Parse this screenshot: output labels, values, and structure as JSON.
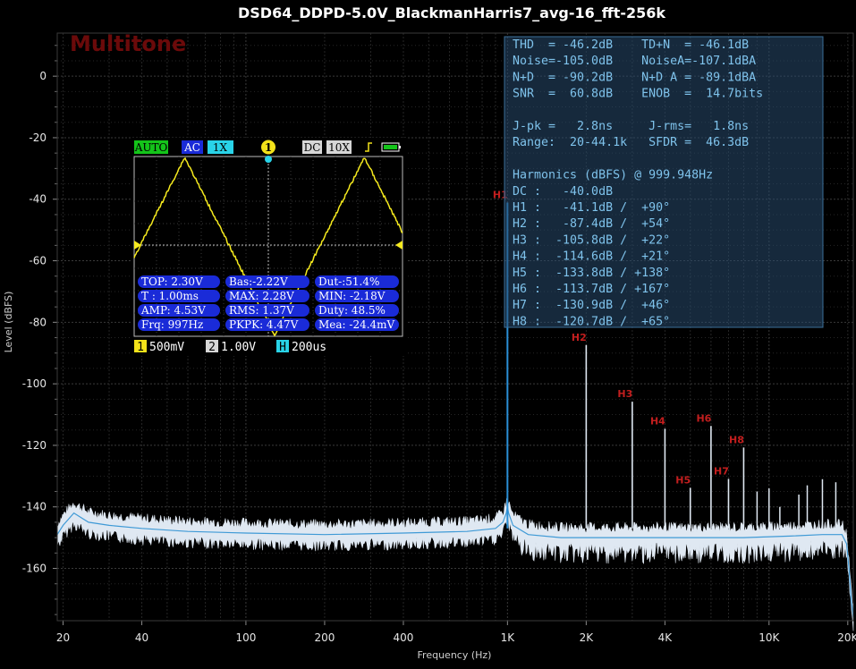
{
  "chart_data": {
    "type": "line",
    "title": "DSD64_DDPD-5.0V_BlackmanHarris7_avg-16_fft-256k",
    "brand": "Multitone",
    "xlabel": "Frequency (Hz)",
    "ylabel": "Level (dBFS)",
    "x_scale": "log",
    "xlim": [
      19,
      21000
    ],
    "ylim": [
      -177,
      14
    ],
    "x_ticks": [
      {
        "value": 20,
        "label": "20"
      },
      {
        "value": 40,
        "label": "40"
      },
      {
        "value": 100,
        "label": "100"
      },
      {
        "value": 200,
        "label": "200"
      },
      {
        "value": 400,
        "label": "400"
      },
      {
        "value": 1000,
        "label": "1K"
      },
      {
        "value": 2000,
        "label": "2K"
      },
      {
        "value": 4000,
        "label": "4K"
      },
      {
        "value": 10000,
        "label": "10K"
      },
      {
        "value": 20000,
        "label": "20K"
      }
    ],
    "y_ticks": [
      0,
      -20,
      -40,
      -60,
      -80,
      -100,
      -120,
      -140,
      -160
    ],
    "grid": true,
    "series": [
      {
        "color": "#dfe8f2",
        "x": [
          19,
          20,
          22,
          25,
          30,
          40,
          60,
          100,
          200,
          400,
          700,
          900,
          960,
          990,
          1000,
          1010,
          1050,
          1200,
          1600,
          2000,
          3000,
          5000,
          8000,
          12000,
          16000,
          19000,
          19800,
          20200,
          20600,
          21000
        ],
        "y": [
          -149,
          -146,
          -142,
          -145,
          -146,
          -147,
          -148,
          -148.5,
          -149,
          -148.5,
          -148,
          -147,
          -145,
          -142,
          -140,
          -142,
          -146,
          -149,
          -150,
          -150,
          -150,
          -150,
          -150,
          -149.5,
          -149,
          -149,
          -152,
          -160,
          -170,
          -176
        ]
      }
    ],
    "harmonic_spikes": [
      {
        "label": "H1",
        "x": 999.948,
        "y": -41.1,
        "color": "#2a8fd6"
      },
      {
        "label": "H2",
        "x": 2000,
        "y": -87.4
      },
      {
        "label": "H3",
        "x": 3000,
        "y": -105.8
      },
      {
        "label": "H4",
        "x": 4000,
        "y": -114.6
      },
      {
        "label": "H5",
        "x": 5000,
        "y": -133.8
      },
      {
        "label": "H6",
        "x": 6000,
        "y": -113.7
      },
      {
        "label": "H7",
        "x": 7000,
        "y": -130.9
      },
      {
        "label": "H8",
        "x": 8000,
        "y": -120.7
      }
    ],
    "extra_spikes": [
      {
        "x": 9000,
        "y": -135
      },
      {
        "x": 10000,
        "y": -134
      },
      {
        "x": 11000,
        "y": -140
      },
      {
        "x": 13000,
        "y": -136
      },
      {
        "x": 14000,
        "y": -133
      },
      {
        "x": 16000,
        "y": -131
      },
      {
        "x": 18000,
        "y": -132
      }
    ]
  },
  "stats_panel": {
    "rows": [
      "THD  = -46.2dB    TD+N  = -46.1dB",
      "Noise=-105.0dB    NoiseA=-107.1dBA",
      "N+D  = -90.2dB    N+D A = -89.1dBA",
      "SNR  =  60.8dB    ENOB  =  14.7bits",
      "",
      "J-pk =   2.8ns     J-rms=   1.8ns",
      "Range:  20-44.1k   SFDR =  46.3dB",
      "",
      "Harmonics (dBFS) @ 999.948Hz",
      "DC :   -40.0dB",
      "H1 :   -41.1dB /  +90°",
      "H2 :   -87.4dB /  +54°",
      "H3 :  -105.8dB /  +22°",
      "H4 :  -114.6dB /  +21°",
      "H5 :  -133.8dB / +138°",
      "H6 :  -113.7dB / +167°",
      "H7 :  -130.9dB /  +46°",
      "H8 :  -120.7dB /  +65°"
    ]
  },
  "scope": {
    "header": {
      "mode": "AUTO",
      "coupling": "AC",
      "probe": "1X",
      "channel": "1",
      "dc": "DC",
      "probe2": "10X"
    },
    "measurements": [
      [
        "TOP: 2.30V",
        "Bas:-2.22V",
        "Dut-:51.4%"
      ],
      [
        "T  : 1.00ms",
        "MAX: 2.28V",
        "MIN: -2.18V"
      ],
      [
        "AMP: 4.53V",
        "RMS: 1.37V",
        "Duty: 48.5%"
      ],
      [
        "Frq: 997Hz",
        "PKPK: 4.47V",
        "Mea: -24.4mV"
      ]
    ],
    "scale": {
      "ch1_num": "1",
      "ch1_val": "500mV",
      "ch2_num": "2",
      "ch2_val": "1.00V",
      "h_num": "H",
      "h_val": "200us"
    }
  }
}
